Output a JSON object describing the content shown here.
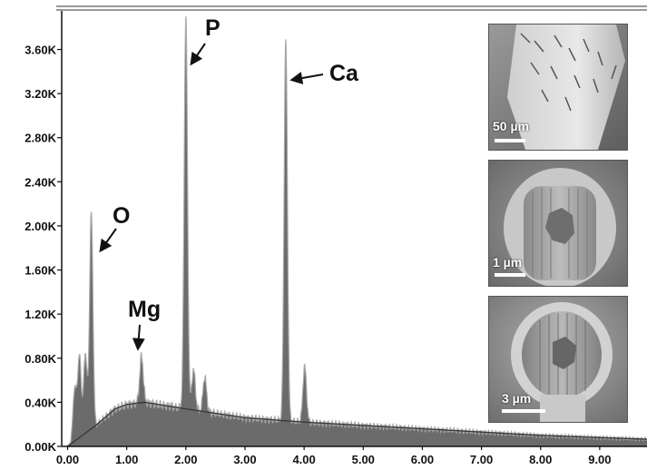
{
  "chart_data": {
    "type": "area",
    "title": "",
    "xlabel": "",
    "ylabel": "",
    "xlim": [
      -0.1,
      9.8
    ],
    "ylim": [
      0,
      3950
    ],
    "x_ticks": [
      "0.00",
      "1.00",
      "2.00",
      "3.00",
      "4.00",
      "5.00",
      "6.00",
      "7.00",
      "8.00",
      "9.00"
    ],
    "y_ticks": [
      "0.00K",
      "0.40K",
      "0.80K",
      "1.20K",
      "1.60K",
      "2.00K",
      "2.40K",
      "2.80K",
      "3.20K",
      "3.60K"
    ],
    "grid": false,
    "peaks": [
      {
        "x": 0.12,
        "y": 520
      },
      {
        "x": 0.2,
        "y": 820
      },
      {
        "x": 0.3,
        "y": 840
      },
      {
        "x": 0.4,
        "y": 2120
      },
      {
        "x": 1.0,
        "y": 330
      },
      {
        "x": 1.25,
        "y": 820
      },
      {
        "x": 1.74,
        "y": 370
      },
      {
        "x": 2.0,
        "y": 3900
      },
      {
        "x": 2.13,
        "y": 700
      },
      {
        "x": 2.32,
        "y": 630
      },
      {
        "x": 3.69,
        "y": 3680
      },
      {
        "x": 4.01,
        "y": 730
      }
    ],
    "background": [
      {
        "x": 0.0,
        "y": 0
      },
      {
        "x": 0.5,
        "y": 200
      },
      {
        "x": 0.8,
        "y": 340
      },
      {
        "x": 1.0,
        "y": 380
      },
      {
        "x": 1.3,
        "y": 400
      },
      {
        "x": 2.0,
        "y": 340
      },
      {
        "x": 3.0,
        "y": 260
      },
      {
        "x": 4.0,
        "y": 220
      },
      {
        "x": 5.0,
        "y": 190
      },
      {
        "x": 6.0,
        "y": 160
      },
      {
        "x": 7.0,
        "y": 130
      },
      {
        "x": 8.0,
        "y": 100
      },
      {
        "x": 9.0,
        "y": 80
      },
      {
        "x": 9.8,
        "y": 65
      }
    ],
    "annotations": [
      {
        "label": "O",
        "x": 0.4,
        "y": 2120
      },
      {
        "label": "Mg",
        "x": 1.25,
        "y": 820
      },
      {
        "label": "P",
        "x": 2.0,
        "y": 3900
      },
      {
        "label": "Ca",
        "x": 3.69,
        "y": 3680
      }
    ]
  },
  "insets": [
    {
      "scale_label": "50 µm"
    },
    {
      "scale_label": "1 µm"
    },
    {
      "scale_label": "3 µm"
    }
  ],
  "colors": {
    "spectrum_fill": "#6b6b6b",
    "spectrum_outline": "#a8a8a8",
    "background_line": "#3a3a3a",
    "axis": "#111111"
  }
}
